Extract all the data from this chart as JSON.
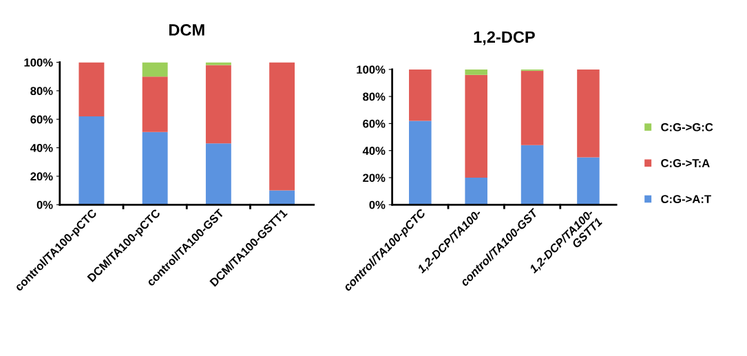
{
  "chart_data": [
    {
      "type": "bar",
      "title": "DCM",
      "stacked": true,
      "categories": [
        "control/TA100-pCTC",
        "DCM/TA100-pCTC",
        "control/TA100-GST",
        "DCM/TA100-GSTT1"
      ],
      "series": [
        {
          "color": "#5b93e0",
          "values": [
            62,
            51,
            43,
            10
          ]
        },
        {
          "color": "#e05a55",
          "values": [
            38,
            39,
            55,
            90
          ]
        },
        {
          "color": "#9ccf5a",
          "values": [
            0,
            10,
            2,
            0
          ]
        }
      ],
      "ylim": [
        0,
        100
      ],
      "yticks": [
        {
          "value": 0,
          "label": "0%"
        },
        {
          "value": 20,
          "label": "20%"
        },
        {
          "value": 40,
          "label": "40%"
        },
        {
          "value": 60,
          "label": "60%"
        },
        {
          "value": 80,
          "label": "80%"
        },
        {
          "value": 100,
          "label": "100%"
        }
      ],
      "grid": false,
      "legend": false
    },
    {
      "type": "bar",
      "title": "1,2-DCP",
      "stacked": true,
      "categories": [
        "control/TA100-pCTC",
        "1,2-DCP/TA100-",
        "control/TA100-GST",
        "1,2-DCP/TA100-\nGSTT1"
      ],
      "series": [
        {
          "name": "C:G->A:T",
          "color": "#5b93e0",
          "values": [
            62,
            20,
            44,
            35
          ]
        },
        {
          "name": "C:G->T:A",
          "color": "#e05a55",
          "values": [
            38,
            76,
            55,
            65
          ]
        },
        {
          "name": "C:G->G:C",
          "color": "#9ccf5a",
          "values": [
            0,
            4,
            1,
            0
          ]
        }
      ],
      "ylim": [
        0,
        100
      ],
      "yticks": [
        {
          "value": 0,
          "label": "0%"
        },
        {
          "value": 20,
          "label": "20%"
        },
        {
          "value": 40,
          "label": "40%"
        },
        {
          "value": 60,
          "label": "60%"
        },
        {
          "value": 80,
          "label": "80%"
        },
        {
          "value": 100,
          "label": "100%"
        }
      ],
      "grid": false,
      "legend": "right"
    }
  ]
}
